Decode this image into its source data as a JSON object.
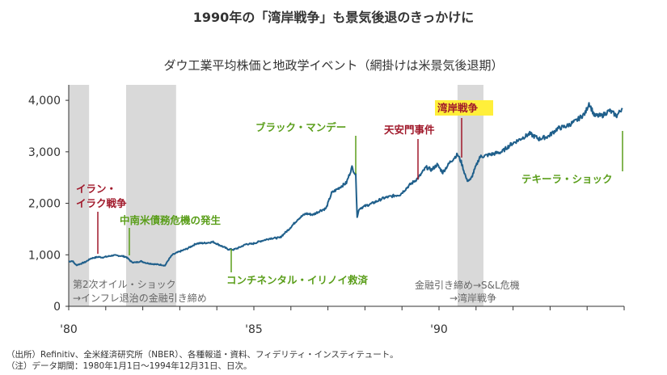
{
  "title": "1990年の「湾岸戦争」も景気後退のきっかけに",
  "subtitle": "ダウ工業平均株価と地政学イベント（網掛けは米景気後退期）",
  "footnotes": [
    "（出所）Refinitiv、全米経済研究所（NBER）、各種報道・資料、フィデリティ・インスティテュート。",
    "（注）データ期間：1980年1月1日～1994年12月31日、日次。"
  ],
  "colors": {
    "line": "#1f5f8b",
    "recession": "#d9d9d9",
    "green": "#5a9e1a",
    "red": "#a0182a",
    "highlight": "#ffef3a"
  },
  "chart_data": {
    "type": "line",
    "title": "ダウ工業平均株価と地政学イベント（網掛けは米景気後退期）",
    "x_ticks": [
      {
        "year": 1980,
        "label": "'80"
      },
      {
        "year": 1985,
        "label": "'85"
      },
      {
        "year": 1990,
        "label": "'90"
      }
    ],
    "y_ticks": [
      {
        "value": 0,
        "label": "0"
      },
      {
        "value": 1000,
        "label": "1,000"
      },
      {
        "value": 2000,
        "label": "2,000"
      },
      {
        "value": 3000,
        "label": "3,000"
      },
      {
        "value": 4000,
        "label": "4,000"
      }
    ],
    "xlim": [
      1980.0,
      1995.0
    ],
    "ylim": [
      0,
      4300
    ],
    "recessions": [
      {
        "start": 1980.0,
        "end": 1980.55
      },
      {
        "start": 1981.55,
        "end": 1982.9
      },
      {
        "start": 1990.5,
        "end": 1991.2
      }
    ],
    "series": [
      {
        "points": [
          [
            1980.0,
            870
          ],
          [
            1980.1,
            880
          ],
          [
            1980.2,
            800
          ],
          [
            1980.3,
            820
          ],
          [
            1980.45,
            860
          ],
          [
            1980.6,
            930
          ],
          [
            1980.8,
            960
          ],
          [
            1980.9,
            950
          ],
          [
            1981.0,
            960
          ],
          [
            1981.2,
            990
          ],
          [
            1981.4,
            980
          ],
          [
            1981.55,
            960
          ],
          [
            1981.7,
            860
          ],
          [
            1981.8,
            850
          ],
          [
            1981.95,
            875
          ],
          [
            1982.1,
            840
          ],
          [
            1982.3,
            820
          ],
          [
            1982.5,
            805
          ],
          [
            1982.6,
            790
          ],
          [
            1982.7,
            910
          ],
          [
            1982.8,
            1000
          ],
          [
            1982.95,
            1050
          ],
          [
            1983.2,
            1120
          ],
          [
            1983.45,
            1220
          ],
          [
            1983.7,
            1230
          ],
          [
            1983.9,
            1250
          ],
          [
            1984.1,
            1180
          ],
          [
            1984.3,
            1110
          ],
          [
            1984.45,
            1100
          ],
          [
            1984.6,
            1140
          ],
          [
            1984.8,
            1210
          ],
          [
            1984.95,
            1210
          ],
          [
            1985.2,
            1270
          ],
          [
            1985.45,
            1320
          ],
          [
            1985.7,
            1330
          ],
          [
            1985.95,
            1500
          ],
          [
            1986.2,
            1700
          ],
          [
            1986.4,
            1800
          ],
          [
            1986.6,
            1780
          ],
          [
            1986.8,
            1860
          ],
          [
            1986.95,
            1900
          ],
          [
            1987.1,
            2200
          ],
          [
            1987.3,
            2300
          ],
          [
            1987.5,
            2400
          ],
          [
            1987.65,
            2700
          ],
          [
            1987.75,
            2550
          ],
          [
            1987.79,
            1750
          ],
          [
            1987.85,
            1900
          ],
          [
            1987.95,
            1930
          ],
          [
            1988.2,
            2000
          ],
          [
            1988.5,
            2100
          ],
          [
            1988.8,
            2150
          ],
          [
            1988.95,
            2170
          ],
          [
            1989.2,
            2350
          ],
          [
            1989.45,
            2500
          ],
          [
            1989.65,
            2700
          ],
          [
            1989.8,
            2650
          ],
          [
            1989.95,
            2750
          ],
          [
            1990.1,
            2600
          ],
          [
            1990.3,
            2800
          ],
          [
            1990.5,
            2950
          ],
          [
            1990.6,
            2800
          ],
          [
            1990.75,
            2450
          ],
          [
            1990.85,
            2450
          ],
          [
            1990.95,
            2630
          ],
          [
            1991.1,
            2900
          ],
          [
            1991.4,
            2950
          ],
          [
            1991.7,
            3000
          ],
          [
            1991.95,
            3150
          ],
          [
            1992.2,
            3250
          ],
          [
            1992.45,
            3350
          ],
          [
            1992.7,
            3250
          ],
          [
            1992.95,
            3300
          ],
          [
            1993.2,
            3450
          ],
          [
            1993.45,
            3500
          ],
          [
            1993.7,
            3600
          ],
          [
            1993.95,
            3750
          ],
          [
            1994.05,
            3950
          ],
          [
            1994.2,
            3700
          ],
          [
            1994.4,
            3700
          ],
          [
            1994.6,
            3800
          ],
          [
            1994.8,
            3700
          ],
          [
            1994.95,
            3850
          ]
        ]
      }
    ],
    "annotations": [
      {
        "text": "イラン・",
        "text2": "イラク戦争",
        "color": "red",
        "year": 1980.7,
        "value": 990
      },
      {
        "text": "中南米債務危機の発生",
        "color": "green",
        "year": 1981.75,
        "value": 980
      },
      {
        "text": "コンチネンタル・イリノイ救済",
        "color": "green",
        "year": 1984.35,
        "value": 1110
      },
      {
        "text": "ブラック・マンデー",
        "color": "green",
        "year": 1987.75,
        "value": 2560
      },
      {
        "text": "天安門事件",
        "color": "red",
        "year": 1989.45,
        "value": 2550
      },
      {
        "text": "湾岸戦争",
        "color": "red",
        "year": 1990.6,
        "value": 3000,
        "highlight": true
      },
      {
        "text": "テキーラ・ショック",
        "color": "green",
        "year": 1994.95,
        "value": 3600
      },
      {
        "text": "第2次オイル・ショック",
        "text2": "→インフレ退治の金融引き締め",
        "color": "gray",
        "year": 1980.0,
        "value": 0
      },
      {
        "text": "金融引き締め→S&L危機",
        "text2": "→湾岸戦争",
        "color": "gray",
        "year": 1990.5,
        "value": 0
      }
    ]
  }
}
